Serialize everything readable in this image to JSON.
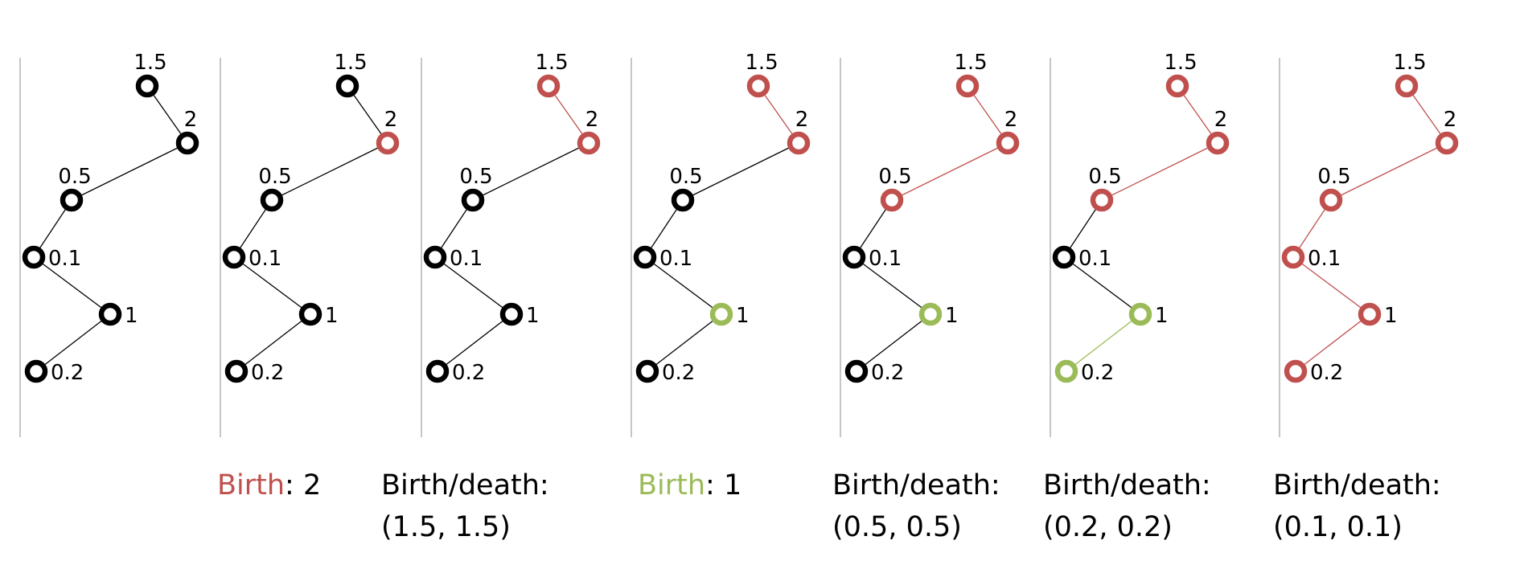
{
  "colors": {
    "black": "#000000",
    "red": "#c0504d",
    "green": "#9bbb59",
    "axis": "#b3b3b3"
  },
  "node_labels": [
    "1.5",
    "2",
    "0.5",
    "0.1",
    "1",
    "0.2"
  ],
  "panels": [
    {
      "node_states": [
        "k",
        "k",
        "k",
        "k",
        "k",
        "k"
      ],
      "edge_states": [
        "k",
        "k",
        "k",
        "k",
        "k"
      ]
    },
    {
      "node_states": [
        "k",
        "r",
        "k",
        "k",
        "k",
        "k"
      ],
      "edge_states": [
        "k",
        "k",
        "k",
        "k",
        "k"
      ]
    },
    {
      "node_states": [
        "r",
        "r",
        "k",
        "k",
        "k",
        "k"
      ],
      "edge_states": [
        "r",
        "k",
        "k",
        "k",
        "k"
      ]
    },
    {
      "node_states": [
        "r",
        "r",
        "k",
        "k",
        "g",
        "k"
      ],
      "edge_states": [
        "r",
        "k",
        "k",
        "k",
        "k"
      ]
    },
    {
      "node_states": [
        "r",
        "r",
        "r",
        "k",
        "g",
        "k"
      ],
      "edge_states": [
        "r",
        "r",
        "k",
        "k",
        "k"
      ]
    },
    {
      "node_states": [
        "r",
        "r",
        "r",
        "k",
        "g",
        "g"
      ],
      "edge_states": [
        "r",
        "r",
        "k",
        "k",
        "g"
      ]
    },
    {
      "node_states": [
        "r",
        "r",
        "r",
        "r",
        "r",
        "r"
      ],
      "edge_states": [
        "r",
        "r",
        "r",
        "r",
        "r"
      ]
    }
  ],
  "captions": {
    "c2": {
      "colored": "Birth",
      "rest": ": 2"
    },
    "c3": {
      "line1": "Birth/death:",
      "line2": "(1.5, 1.5)"
    },
    "c4": {
      "colored": "Birth",
      "rest": ": 1"
    },
    "c5": {
      "line1": "Birth/death:",
      "line2": "(0.5, 0.5)"
    },
    "c6": {
      "line1": "Birth/death:",
      "line2": "(0.2, 0.2)"
    },
    "c7": {
      "line1": "Birth/death:",
      "line2": "(0.1, 0.1)"
    }
  }
}
